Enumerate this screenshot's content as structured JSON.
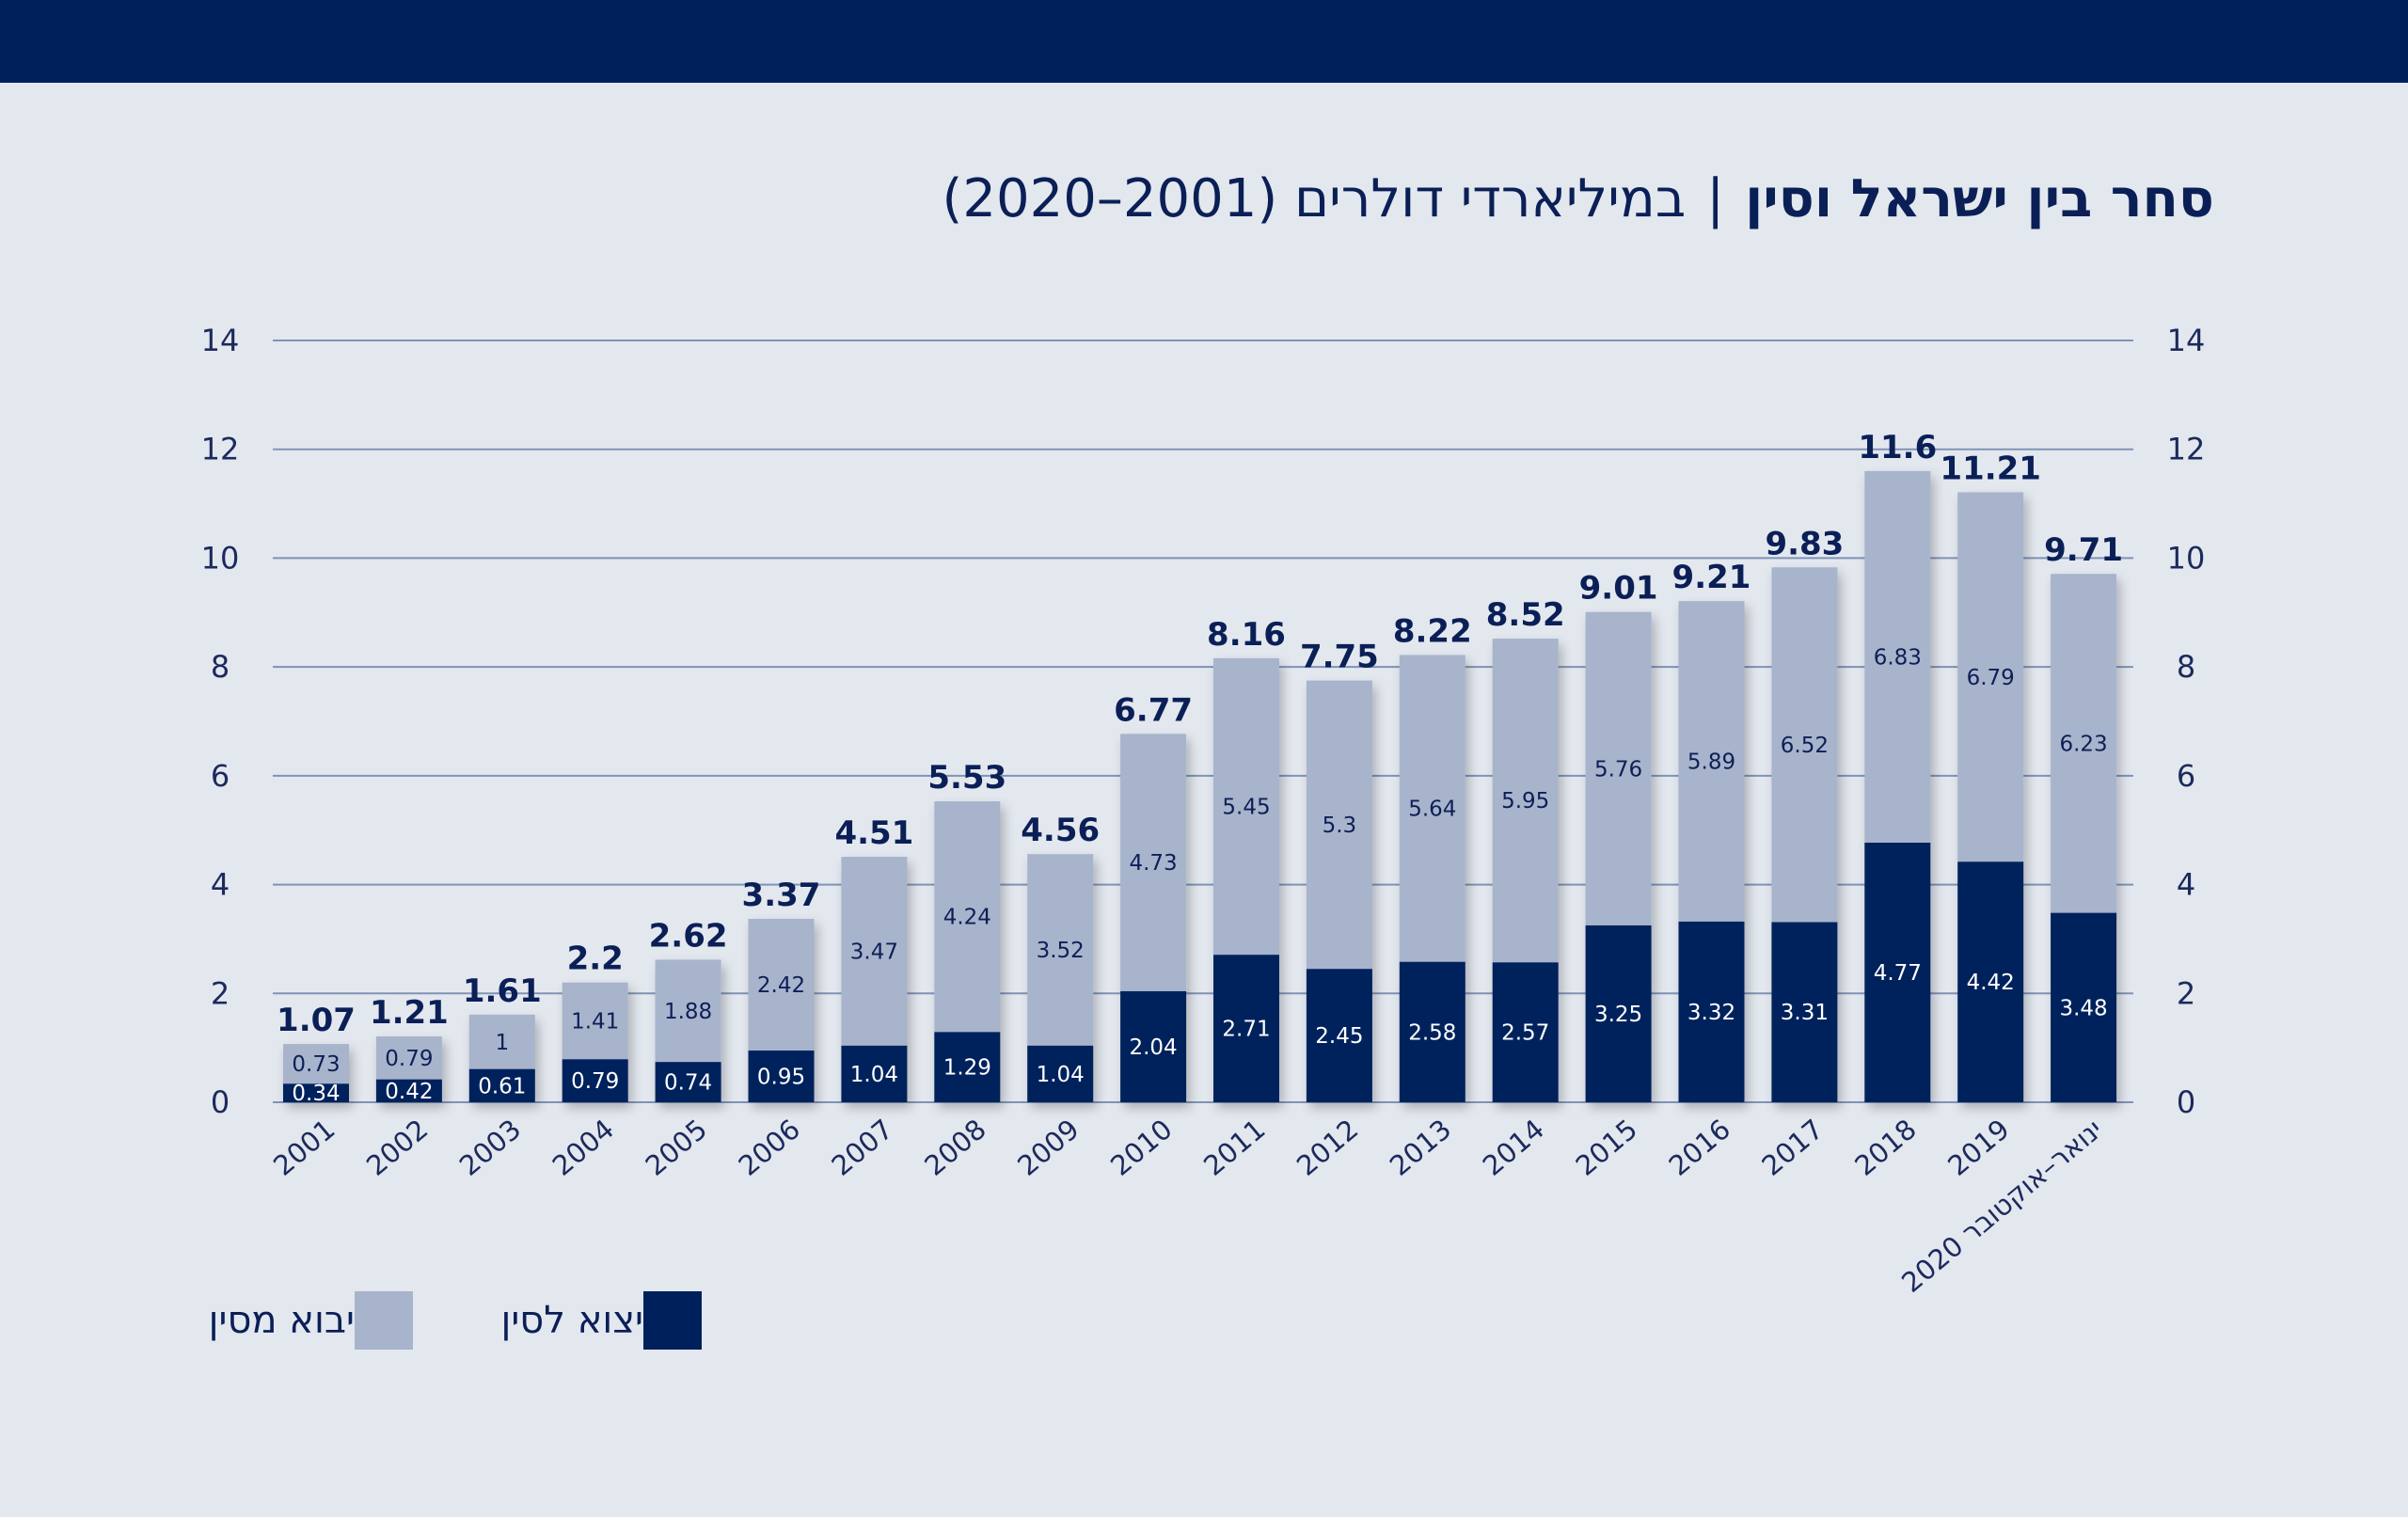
{
  "header": {
    "bar_color": "#00205b"
  },
  "title": {
    "main": "סחר בין ישראל וסין",
    "separator": "|",
    "subtitle": "במיליארדי דולרים (2001–2020)"
  },
  "legend": {
    "exports_label": "יצוא לסין",
    "imports_label": "יבוא מסין"
  },
  "colors": {
    "exports": "#00205b",
    "imports": "#a7b4cc",
    "background": "#e3e8ef",
    "gridline": "#7f93b6"
  },
  "chart_data": {
    "type": "bar",
    "stacked": true,
    "categories": [
      "2001",
      "2002",
      "2003",
      "2004",
      "2005",
      "2006",
      "2007",
      "2008",
      "2009",
      "2010",
      "2011",
      "2012",
      "2013",
      "2014",
      "2015",
      "2016",
      "2017",
      "2018",
      "2019",
      "ינואר–אוקטובר 2020"
    ],
    "series": [
      {
        "name": "יצוא לסין",
        "color": "#00205b",
        "values": [
          0.34,
          0.42,
          0.61,
          0.79,
          0.74,
          0.95,
          1.04,
          1.29,
          1.04,
          2.04,
          2.71,
          2.45,
          2.58,
          2.57,
          3.25,
          3.32,
          3.31,
          4.77,
          4.42,
          3.48
        ]
      },
      {
        "name": "יבוא מסין",
        "color": "#a7b4cc",
        "values": [
          0.73,
          0.79,
          1,
          1.41,
          1.88,
          2.42,
          3.47,
          4.24,
          3.52,
          4.73,
          5.45,
          5.3,
          5.64,
          5.95,
          5.76,
          5.89,
          6.52,
          6.83,
          6.79,
          6.23
        ]
      }
    ],
    "totals": [
      1.07,
      1.21,
      1.61,
      2.2,
      2.62,
      3.37,
      4.51,
      5.53,
      4.56,
      6.77,
      8.16,
      7.75,
      8.22,
      8.52,
      9.01,
      9.21,
      9.83,
      11.6,
      11.21,
      9.71
    ],
    "ylim": [
      0,
      14
    ],
    "yticks": [
      0,
      2,
      4,
      6,
      8,
      10,
      12,
      14
    ],
    "grid": true,
    "secondary_y_axis": true,
    "legend_position": "bottom-left"
  }
}
